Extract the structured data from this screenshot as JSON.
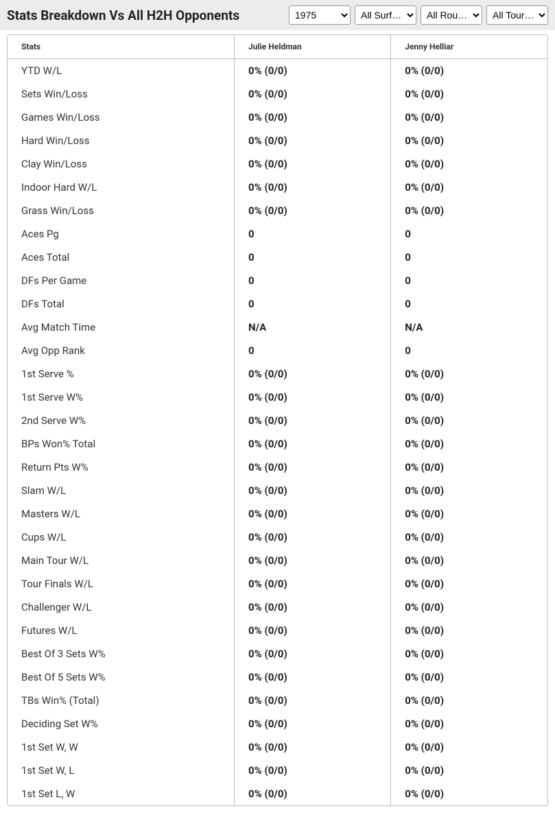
{
  "header": {
    "title": "Stats Breakdown Vs All H2H Opponents",
    "year_selected": "1975",
    "surface_selected": "All Surf…",
    "round_selected": "All Rou…",
    "tour_selected": "All Tour…"
  },
  "table": {
    "columns": [
      "Stats",
      "Julie Heldman",
      "Jenny Helliar"
    ],
    "rows": [
      [
        "YTD W/L",
        "0% (0/0)",
        "0% (0/0)"
      ],
      [
        "Sets Win/Loss",
        "0% (0/0)",
        "0% (0/0)"
      ],
      [
        "Games Win/Loss",
        "0% (0/0)",
        "0% (0/0)"
      ],
      [
        "Hard Win/Loss",
        "0% (0/0)",
        "0% (0/0)"
      ],
      [
        "Clay Win/Loss",
        "0% (0/0)",
        "0% (0/0)"
      ],
      [
        "Indoor Hard W/L",
        "0% (0/0)",
        "0% (0/0)"
      ],
      [
        "Grass Win/Loss",
        "0% (0/0)",
        "0% (0/0)"
      ],
      [
        "Aces Pg",
        "0",
        "0"
      ],
      [
        "Aces Total",
        "0",
        "0"
      ],
      [
        "DFs Per Game",
        "0",
        "0"
      ],
      [
        "DFs Total",
        "0",
        "0"
      ],
      [
        "Avg Match Time",
        "N/A",
        "N/A"
      ],
      [
        "Avg Opp Rank",
        "0",
        "0"
      ],
      [
        "1st Serve %",
        "0% (0/0)",
        "0% (0/0)"
      ],
      [
        "1st Serve W%",
        "0% (0/0)",
        "0% (0/0)"
      ],
      [
        "2nd Serve W%",
        "0% (0/0)",
        "0% (0/0)"
      ],
      [
        "BPs Won% Total",
        "0% (0/0)",
        "0% (0/0)"
      ],
      [
        "Return Pts W%",
        "0% (0/0)",
        "0% (0/0)"
      ],
      [
        "Slam W/L",
        "0% (0/0)",
        "0% (0/0)"
      ],
      [
        "Masters W/L",
        "0% (0/0)",
        "0% (0/0)"
      ],
      [
        "Cups W/L",
        "0% (0/0)",
        "0% (0/0)"
      ],
      [
        "Main Tour W/L",
        "0% (0/0)",
        "0% (0/0)"
      ],
      [
        "Tour Finals W/L",
        "0% (0/0)",
        "0% (0/0)"
      ],
      [
        "Challenger W/L",
        "0% (0/0)",
        "0% (0/0)"
      ],
      [
        "Futures W/L",
        "0% (0/0)",
        "0% (0/0)"
      ],
      [
        "Best Of 3 Sets W%",
        "0% (0/0)",
        "0% (0/0)"
      ],
      [
        "Best Of 5 Sets W%",
        "0% (0/0)",
        "0% (0/0)"
      ],
      [
        "TBs Win% (Total)",
        "0% (0/0)",
        "0% (0/0)"
      ],
      [
        "Deciding Set W%",
        "0% (0/0)",
        "0% (0/0)"
      ],
      [
        "1st Set W, W",
        "0% (0/0)",
        "0% (0/0)"
      ],
      [
        "1st Set W, L",
        "0% (0/0)",
        "0% (0/0)"
      ],
      [
        "1st Set L, W",
        "0% (0/0)",
        "0% (0/0)"
      ]
    ]
  },
  "colors": {
    "header_bg": "#ececec",
    "border": "#bdbdbd",
    "text": "#333333",
    "bold_text": "#222222"
  }
}
